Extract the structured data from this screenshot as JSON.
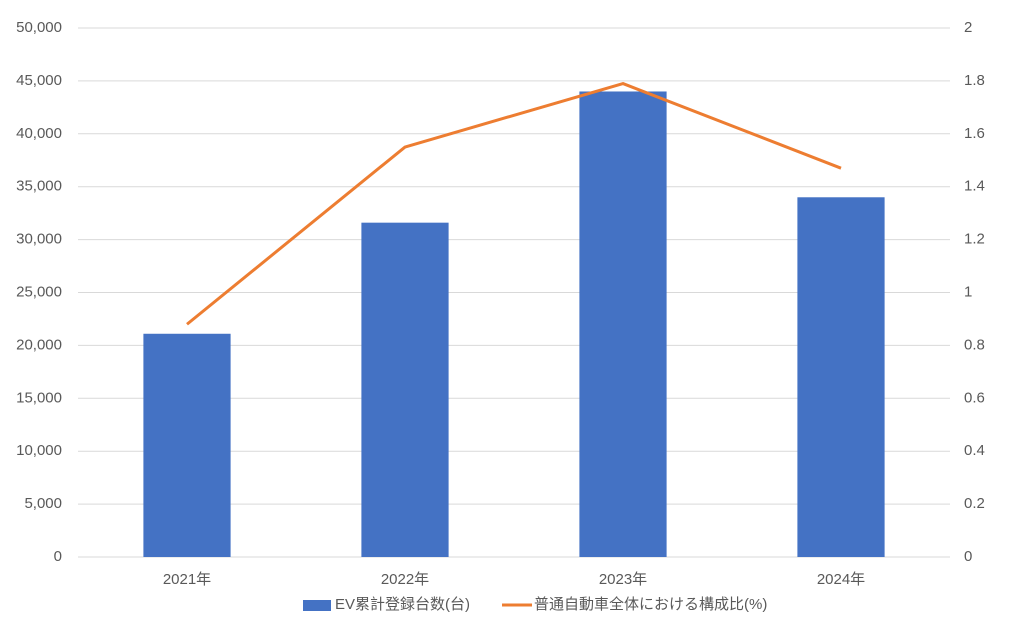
{
  "chart_data": {
    "type": "bar",
    "categories": [
      "2021年",
      "2022年",
      "2023年",
      "2024年"
    ],
    "series": [
      {
        "name": "EV累計登録台数(台)",
        "type": "bar",
        "color": "#4472c4",
        "values": [
          21100,
          31600,
          44000,
          34000
        ]
      },
      {
        "name": "普通自動車全体における構成比(%)",
        "type": "line",
        "axis": "y2",
        "color": "#ed7d31",
        "values": [
          0.88,
          1.55,
          1.79,
          1.47
        ]
      }
    ],
    "ylim": [
      0,
      50000
    ],
    "yticks": [
      0,
      {
        "value": 5000,
        "label": "5,000"
      },
      {
        "value": 10000,
        "label": "10,000"
      },
      {
        "value": 15000,
        "label": "15,000"
      },
      {
        "value": 20000,
        "label": "20,000"
      },
      {
        "value": 25000,
        "label": "25,000"
      },
      {
        "value": 30000,
        "label": "30,000"
      },
      {
        "value": 35000,
        "label": "35,000"
      },
      {
        "value": 40000,
        "label": "40,000"
      },
      {
        "value": 45000,
        "label": "45,000"
      },
      {
        "value": 50000,
        "label": "50,000"
      }
    ],
    "y2lim": [
      0,
      2
    ],
    "y2ticks": [
      0,
      0.2,
      0.4,
      0.6,
      0.8,
      1,
      1.2,
      1.4,
      1.6,
      1.8,
      2
    ],
    "grid": true,
    "legend": "bottom"
  }
}
